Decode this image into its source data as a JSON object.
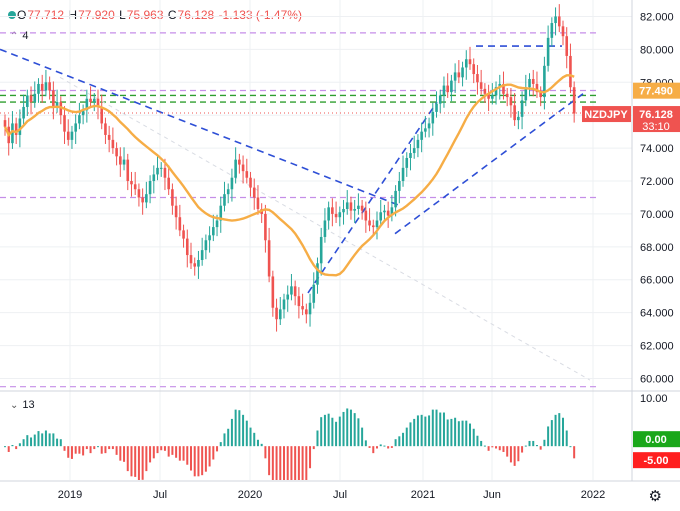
{
  "ohlc": {
    "open_label": "O",
    "open": "77.712",
    "high_label": "H",
    "high": "77.920",
    "low_label": "L",
    "low": "75.963",
    "close_label": "C",
    "close": "76.128",
    "change": "-1.133 (-1.47%)"
  },
  "main_indicator_label": "4",
  "osc_indicator_label": "13",
  "symbol": "NZDJPY",
  "last_price": "76.128",
  "countdown": "33:10",
  "ma_price": "77.490",
  "osc_pos_label": "0.00",
  "osc_neg_label": "-5.00",
  "colors": {
    "up": "#26a69a",
    "down": "#ef5350",
    "ma": "#f6ad46",
    "trend": "#2e4fd6",
    "level_purple": "#c58ee8",
    "level_green": "#2e9e2e"
  },
  "chart_data": {
    "type": "candlestick",
    "series_name": "NZDJPY",
    "interval": "weekly",
    "x_ticks": [
      "2019",
      "Jul",
      "2020",
      "Jul",
      "2021",
      "Jun",
      "2022"
    ],
    "y_ticks": [
      60,
      62,
      64,
      66,
      68,
      70,
      72,
      74,
      76,
      78,
      80,
      82
    ],
    "y_range": [
      59.3,
      83.0
    ],
    "osc_ticks": [
      10.0
    ],
    "osc_range": [
      -7,
      11
    ],
    "closes": [
      75.3,
      74.3,
      75.5,
      74.8,
      75.8,
      76.5,
      77.2,
      76.8,
      77.3,
      77.9,
      77.5,
      78.0,
      77.5,
      76.5,
      76.8,
      76.0,
      75.0,
      74.5,
      75.0,
      75.5,
      76.0,
      76.3,
      77.0,
      76.8,
      77.0,
      76.5,
      75.5,
      74.8,
      74.5,
      74.0,
      73.5,
      73.0,
      73.3,
      72.0,
      71.8,
      71.5,
      71.0,
      70.7,
      71.2,
      72.0,
      72.4,
      72.8,
      72.8,
      72.2,
      71.5,
      70.5,
      69.8,
      69.0,
      68.5,
      67.5,
      67.0,
      66.8,
      67.2,
      67.8,
      68.4,
      68.7,
      69.2,
      69.6,
      70.5,
      71.2,
      71.5,
      72.2,
      73.3,
      73.0,
      72.6,
      72.2,
      71.6,
      71.0,
      70.3,
      70.0,
      68.4,
      66.2,
      64.3,
      63.6,
      64.2,
      64.8,
      65.1,
      65.6,
      65.0,
      64.4,
      64.2,
      63.9,
      64.6,
      65.7,
      67.0,
      68.6,
      69.6,
      70.4,
      70.0,
      69.8,
      70.1,
      70.3,
      70.7,
      70.2,
      70.3,
      70.5,
      70.2,
      69.6,
      69.3,
      69.2,
      69.6,
      70.1,
      70.2,
      69.9,
      70.4,
      71.4,
      72.0,
      72.8,
      73.4,
      73.7,
      74.0,
      74.5,
      75.0,
      75.2,
      75.5,
      76.2,
      76.7,
      77.2,
      77.8,
      77.4,
      78.1,
      78.6,
      78.3,
      78.9,
      79.4,
      79.1,
      78.5,
      78.0,
      77.6,
      77.3,
      77.0,
      77.2,
      77.7,
      77.9,
      77.3,
      77.1,
      76.6,
      75.7,
      75.9,
      76.9,
      77.7,
      78.2,
      77.9,
      77.4,
      77.1,
      79.0,
      80.7,
      81.6,
      82.0,
      81.4,
      80.8,
      79.6,
      77.7,
      76.1
    ]
  }
}
